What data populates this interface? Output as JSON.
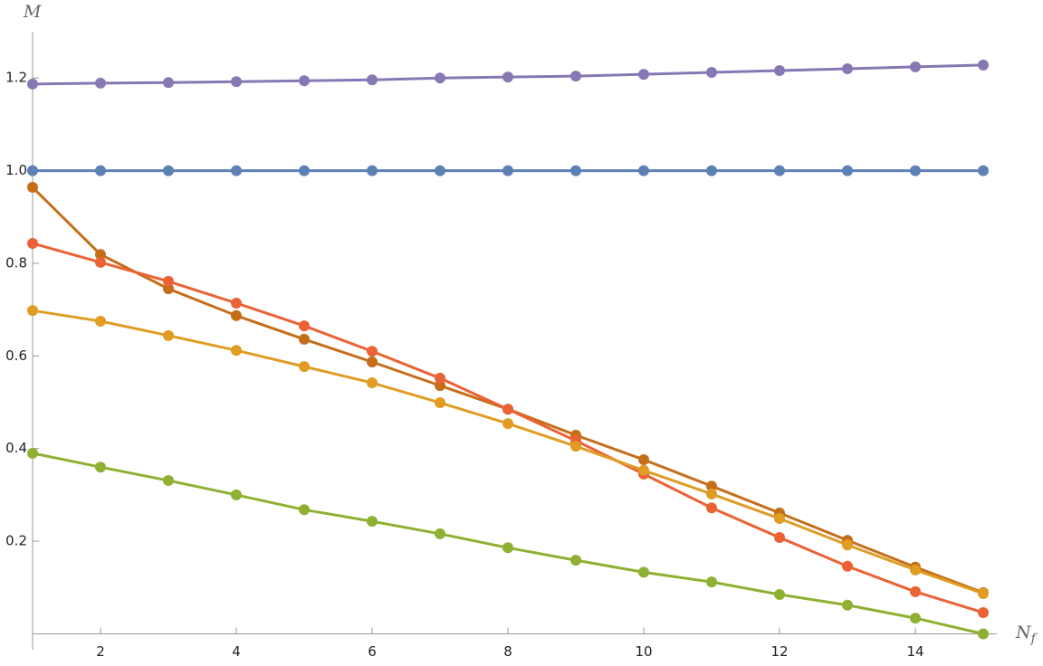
{
  "chart_data": {
    "type": "line",
    "y_label": "M",
    "x_label": "N",
    "x_label_sub": "f",
    "x": [
      1,
      2,
      3,
      4,
      5,
      6,
      7,
      8,
      9,
      10,
      11,
      12,
      13,
      14,
      15
    ],
    "xlim": [
      1,
      15.2
    ],
    "ylim": [
      0,
      1.3
    ],
    "xticks": [
      2,
      4,
      6,
      8,
      10,
      12,
      14
    ],
    "yticks": [
      0.2,
      0.4,
      0.6,
      0.8,
      {
        "value": 1,
        "label": "1.0"
      },
      1.2
    ],
    "series": [
      {
        "color": "#8778b3",
        "values": [
          1.187,
          1.189,
          1.19,
          1.192,
          1.194,
          1.196,
          1.2,
          1.202,
          1.204,
          1.208,
          1.212,
          1.216,
          1.22,
          1.224,
          1.228
        ]
      },
      {
        "color": "#5e81b5",
        "values": [
          1,
          1,
          1,
          1,
          1,
          1,
          1,
          1,
          1,
          1,
          1,
          1,
          1,
          1,
          1
        ]
      },
      {
        "color": "#c56e1a",
        "values": [
          0.964,
          0.819,
          0.745,
          0.687,
          0.636,
          0.587,
          0.536,
          0.485,
          0.429,
          0.376,
          0.319,
          0.261,
          0.202,
          0.144,
          0.089
        ]
      },
      {
        "color": "#eb6235",
        "values": [
          0.843,
          0.802,
          0.761,
          0.714,
          0.665,
          0.61,
          0.552,
          0.485,
          0.417,
          0.345,
          0.272,
          0.208,
          0.146,
          0.091,
          0.046
        ]
      },
      {
        "color": "#e19c24",
        "values": [
          0.698,
          0.675,
          0.644,
          0.612,
          0.577,
          0.542,
          0.499,
          0.454,
          0.405,
          0.353,
          0.302,
          0.249,
          0.192,
          0.138,
          0.087
        ]
      },
      {
        "color": "#8fb032",
        "values": [
          0.39,
          0.36,
          0.331,
          0.3,
          0.268,
          0.243,
          0.216,
          0.186,
          0.159,
          0.133,
          0.112,
          0.085,
          0.062,
          0.034,
          0
        ]
      }
    ]
  }
}
